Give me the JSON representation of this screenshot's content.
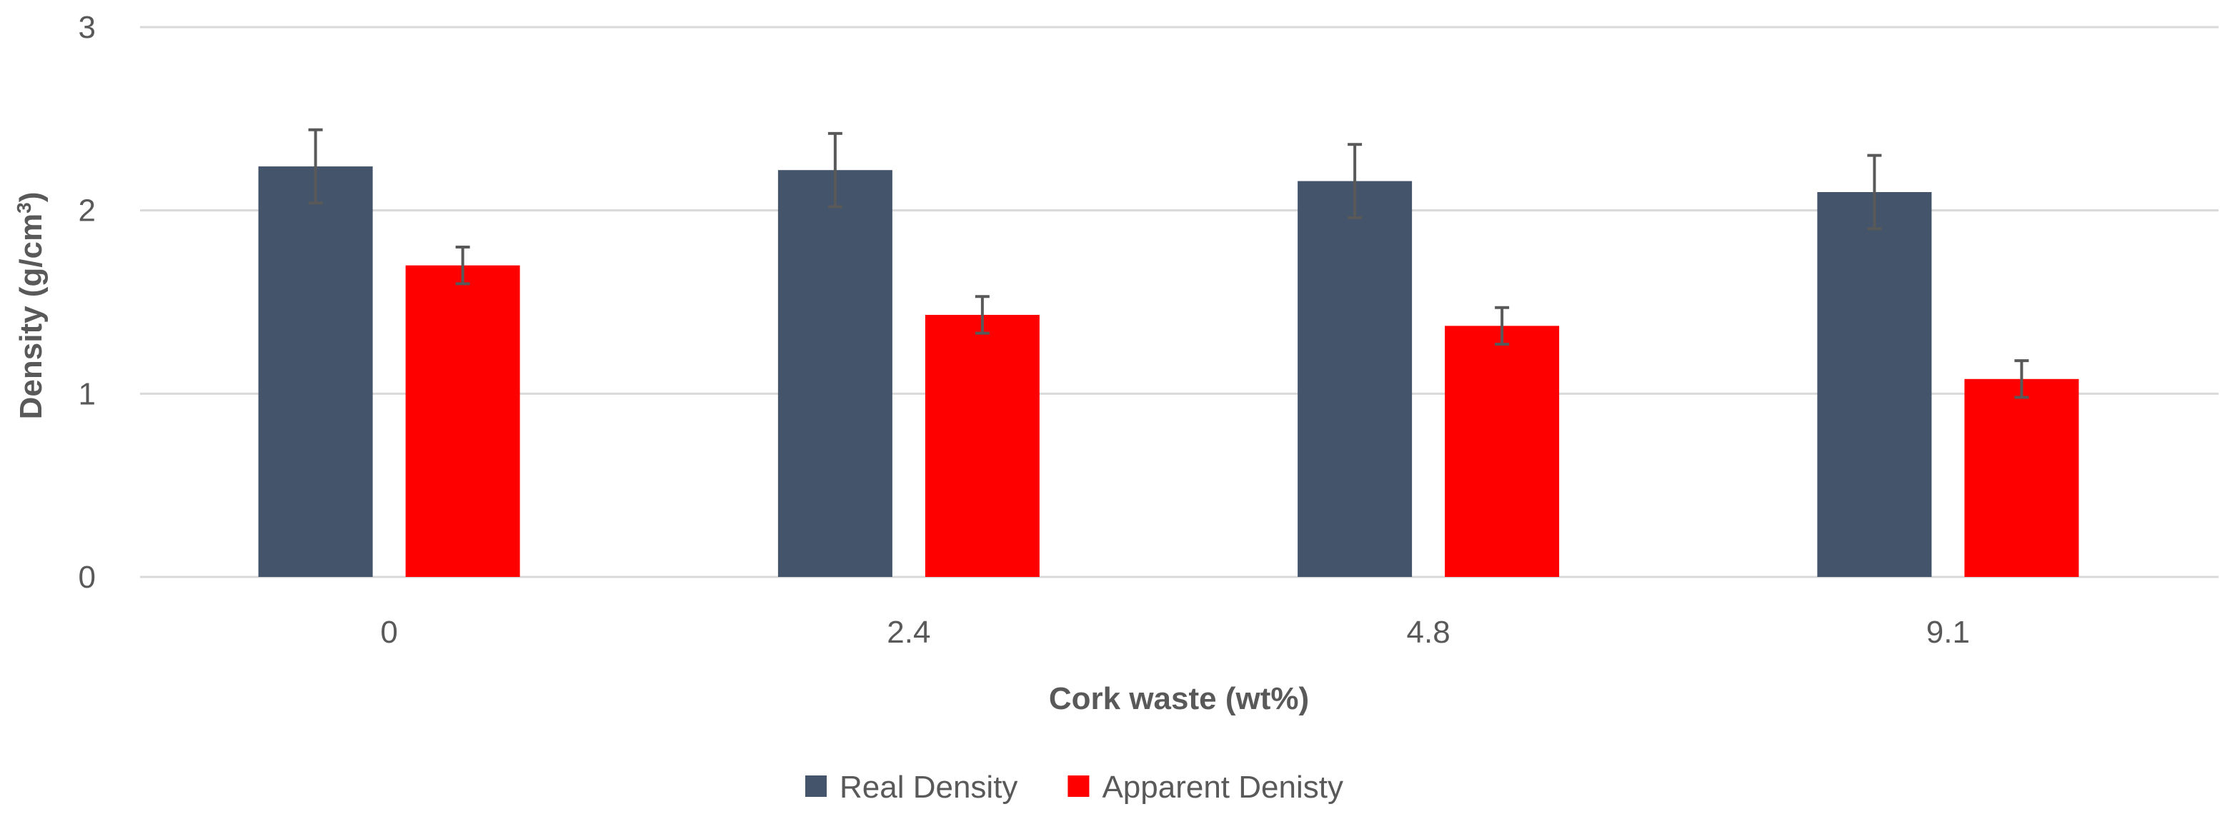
{
  "chart_data": {
    "type": "bar",
    "title": "",
    "xlabel": "Cork waste (wt%)",
    "ylabel": "Density (g/cm",
    "ylabel_superscript": "3",
    "ylabel_suffix": ")",
    "ylim": [
      0,
      3
    ],
    "yticks": [
      "0",
      "1",
      "2",
      "3"
    ],
    "grid": true,
    "legend_position": "bottom",
    "categories": [
      "0",
      "2.4",
      "4.8",
      "9.1"
    ],
    "series": [
      {
        "name": "Real Density",
        "color": "#44546a",
        "values": [
          2.24,
          2.22,
          2.16,
          2.1
        ],
        "errors": [
          0.2,
          0.2,
          0.2,
          0.2
        ]
      },
      {
        "name": "Apparent Denisty",
        "color": "#ff0000",
        "values": [
          1.7,
          1.43,
          1.37,
          1.08
        ],
        "errors": [
          0.1,
          0.1,
          0.1,
          0.1
        ]
      }
    ]
  }
}
